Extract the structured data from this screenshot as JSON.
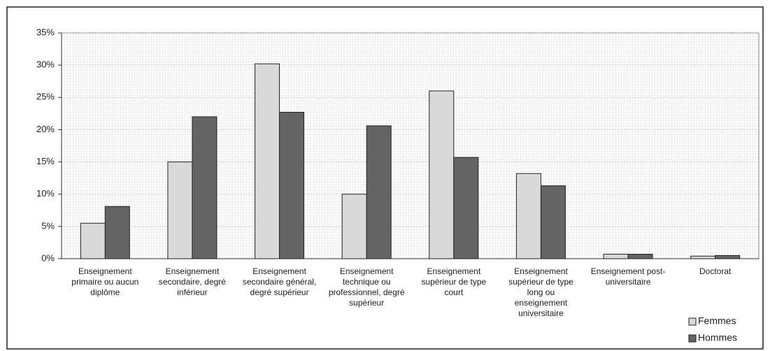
{
  "chart_data": {
    "type": "bar",
    "categories": [
      "Enseignement primaire ou aucun diplôme",
      "Enseignement secondaire, degré inférieur",
      "Enseignement secondaire général, degré supérieur",
      "Enseignement technique ou professionnel, degré supérieur",
      "Enseignement supérieur de type court",
      "Enseignement supérieur de type long ou enseignement universitaire",
      "Enseignement post-universitaire",
      "Doctorat"
    ],
    "series": [
      {
        "name": "Femmes",
        "color": "#d9d9d9",
        "values": [
          5.5,
          15,
          30.2,
          10,
          26,
          13.2,
          0.7,
          0.4
        ]
      },
      {
        "name": "Hommes",
        "color": "#646464",
        "values": [
          8.1,
          22,
          22.7,
          20.6,
          15.7,
          11.3,
          0.7,
          0.5
        ]
      }
    ],
    "ylim": [
      0,
      35
    ],
    "yticks": [
      {
        "value": 0,
        "label": "0%"
      },
      {
        "value": 5,
        "label": "5%"
      },
      {
        "value": 10,
        "label": "10%"
      },
      {
        "value": 15,
        "label": "15%"
      },
      {
        "value": 20,
        "label": "20%"
      },
      {
        "value": 25,
        "label": "25%"
      },
      {
        "value": 30,
        "label": "30%"
      },
      {
        "value": 35,
        "label": "35%"
      }
    ],
    "grid": true,
    "legend": "bottom-right"
  }
}
